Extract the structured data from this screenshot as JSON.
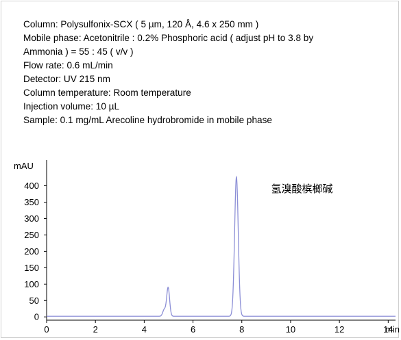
{
  "conditions": {
    "column": "Column: Polysulfonix-SCX ( 5 µm, 120 Å, 4.6 x 250 mm )",
    "mobile_phase_1": "Mobile phase: Acetonitrile : 0.2% Phosphoric acid ( adjust pH to 3.8 by",
    "mobile_phase_2": "Ammonia ) = 55 : 45 ( v/v )",
    "flow_rate": "Flow rate: 0.6 mL/min",
    "detector": "Detector: UV 215 nm",
    "column_temperature": "Column temperature: Room temperature",
    "injection_volume": "Injection volume: 10 µL",
    "sample": "Sample: 0.1 mg/mL Arecoline hydrobromide in mobile phase"
  },
  "chart_data": {
    "type": "line",
    "ylabel": "mAU",
    "xlabel": "min",
    "xlim": [
      0,
      14.3
    ],
    "ylim": [
      -10,
      470
    ],
    "x_ticks": [
      0,
      2,
      4,
      6,
      8,
      10,
      12,
      14
    ],
    "y_ticks": [
      0,
      50,
      100,
      150,
      200,
      250,
      300,
      350,
      400
    ],
    "x_tick_labels": [
      "0",
      "2",
      "4",
      "6",
      "8",
      "10",
      "12",
      "14"
    ],
    "y_tick_labels": [
      "0",
      "50",
      "100",
      "150",
      "200",
      "250",
      "300",
      "350",
      "400"
    ],
    "line_color": "#8c8fd6",
    "peaks": [
      {
        "time": 4.82,
        "height": 20,
        "width": 0.06
      },
      {
        "time": 4.98,
        "height": 88,
        "width": 0.06
      },
      {
        "time": 7.78,
        "height": 425,
        "width": 0.075
      }
    ],
    "baseline": 2,
    "annotations": [
      {
        "text": "氢溴酸槟榔碱",
        "x": 9.2,
        "y": 380
      }
    ]
  }
}
